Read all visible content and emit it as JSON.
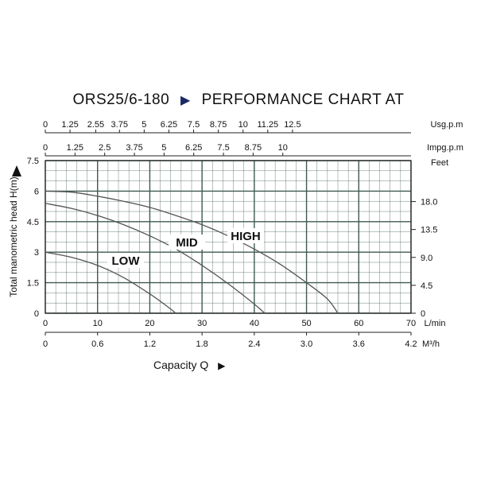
{
  "title_left": "ORS25/6-180",
  "title_arrow_icon": "play-triangle-icon",
  "title_right": "PERFORMANCE CHART AT",
  "capacity_label": "Capacity Q",
  "ylabel": "Total manometric head H(m)",
  "colors": {
    "grid": "#3f5a50",
    "curve": "#555555",
    "text": "#111111",
    "accent": "#1a2a66"
  },
  "chart_data": {
    "type": "line",
    "title": "ORS25/6-180 ► PERFORMANCE CHART AT",
    "xlabel": "Capacity Q",
    "ylabel": "Total manometric head H(m)",
    "xlim": [
      0,
      70
    ],
    "ylim": [
      0,
      7.5
    ],
    "grid": true,
    "axes": {
      "bottom_primary": {
        "unit": "L/min",
        "ticks": [
          0,
          10,
          20,
          30,
          40,
          50,
          60,
          70
        ]
      },
      "bottom_secondary": {
        "unit": "M³/h",
        "ticks": [
          "0",
          "0.6",
          "1.2",
          "1.8",
          "2.4",
          "3.0",
          "3.6",
          "4.2"
        ]
      },
      "top_usgpm": {
        "unit": "Usg.p.m",
        "ticks": [
          "0",
          "1.25",
          "2.55",
          "3.75",
          "5",
          "6.25",
          "7.5",
          "8.75",
          "10",
          "11.25",
          "12.5"
        ]
      },
      "top_impgpm": {
        "unit": "Impg.p.m",
        "ticks": [
          "0",
          "1.25",
          "2.5",
          "3.75",
          "5",
          "6.25",
          "7.5",
          "8.75",
          "10"
        ]
      },
      "left": {
        "ticks": [
          "0",
          "1.5",
          "3",
          "4.5",
          "6",
          "7.5"
        ]
      },
      "right_feet": {
        "unit": "Feet",
        "ticks": [
          "0",
          "4.5",
          "9.0",
          "13.5",
          "18.0"
        ]
      }
    },
    "series": [
      {
        "name": "LOW",
        "x": [
          0,
          5,
          10,
          15,
          20,
          23,
          25
        ],
        "y": [
          3.0,
          2.75,
          2.35,
          1.75,
          0.95,
          0.4,
          0.0
        ]
      },
      {
        "name": "MID",
        "x": [
          0,
          5,
          10,
          15,
          20,
          25,
          30,
          35,
          40,
          42
        ],
        "y": [
          5.4,
          5.15,
          4.8,
          4.35,
          3.8,
          3.15,
          2.35,
          1.45,
          0.45,
          0.0
        ]
      },
      {
        "name": "HIGH",
        "x": [
          0,
          5,
          10,
          15,
          20,
          25,
          30,
          35,
          40,
          45,
          50,
          54,
          56
        ],
        "y": [
          6.0,
          5.95,
          5.75,
          5.5,
          5.2,
          4.8,
          4.35,
          3.8,
          3.15,
          2.4,
          1.5,
          0.7,
          0.0
        ]
      }
    ]
  }
}
